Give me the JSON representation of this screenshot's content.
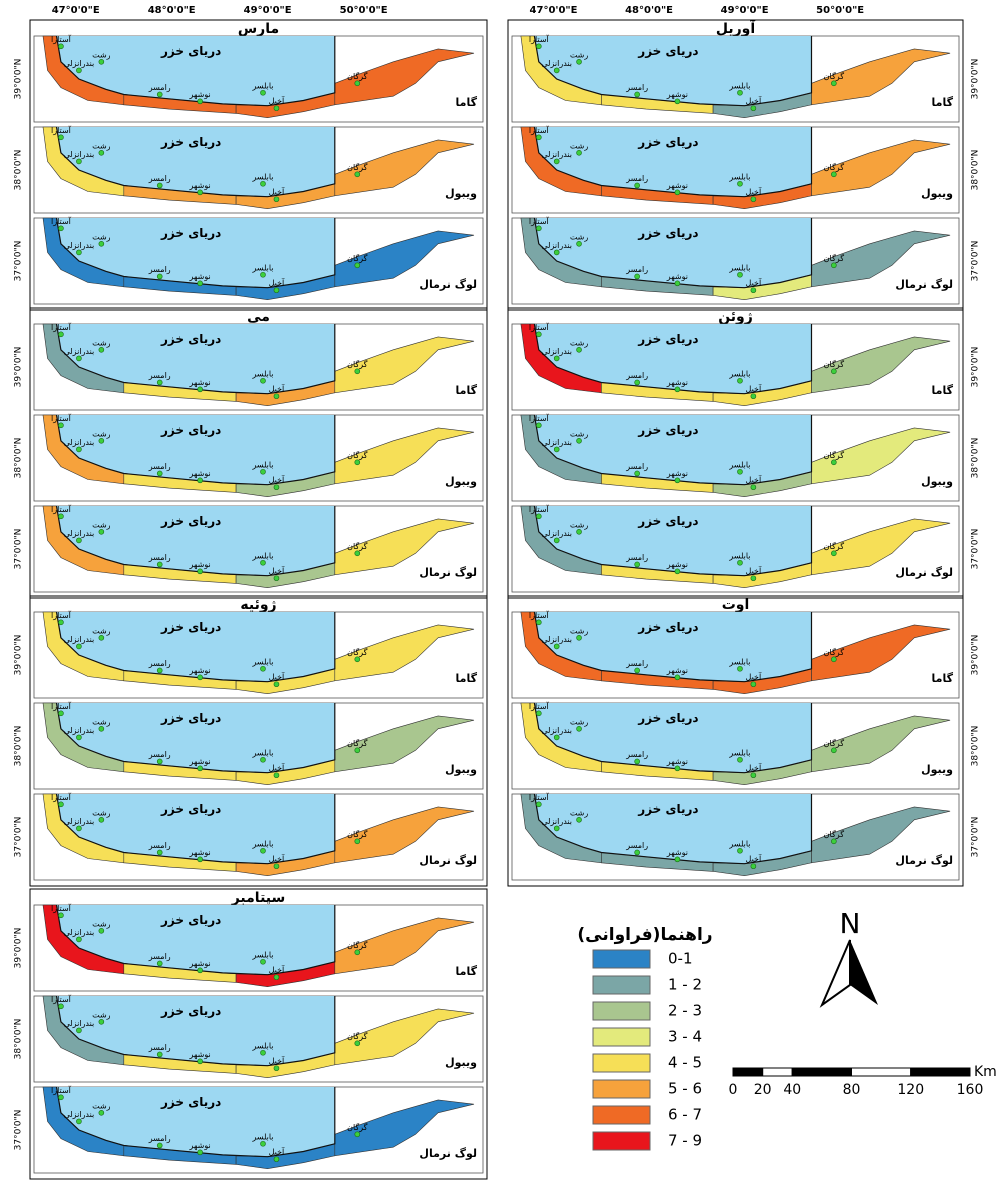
{
  "axis_labels": {
    "lon": [
      "47°0'0\"E",
      "48°0'0\"E",
      "49°0'0\"E",
      "50°0'0\"E"
    ],
    "lat": [
      "39°0'0\"N",
      "38°0'0\"N",
      "37°0'0\"N"
    ]
  },
  "map_labels": {
    "sea": "دریای خزر",
    "cities": [
      "آستارا",
      "بندرانزلی",
      "رشت",
      "رامسر",
      "نوشهر",
      "بابلسر",
      "آخیل",
      "گرگان"
    ]
  },
  "panels": [
    {
      "title": "مارس",
      "maps": [
        {
          "model": "گاما",
          "zones": [
            6,
            6,
            6,
            6
          ]
        },
        {
          "model": "ویبول",
          "zones": [
            4,
            5,
            5,
            5
          ]
        },
        {
          "model": "لوگ نرمال",
          "zones": [
            0,
            0,
            0,
            0
          ]
        }
      ]
    },
    {
      "title": "آوریل",
      "maps": [
        {
          "model": "گاما",
          "zones": [
            4,
            4,
            1,
            5
          ]
        },
        {
          "model": "ویبول",
          "zones": [
            6,
            6,
            6,
            5
          ]
        },
        {
          "model": "لوگ نرمال",
          "zones": [
            1,
            1,
            3,
            1
          ]
        }
      ]
    },
    {
      "title": "می",
      "maps": [
        {
          "model": "گاما",
          "zones": [
            1,
            4,
            5,
            4
          ]
        },
        {
          "model": "ویبول",
          "zones": [
            5,
            4,
            2,
            4
          ]
        },
        {
          "model": "لوگ نرمال",
          "zones": [
            5,
            4,
            2,
            4
          ]
        }
      ]
    },
    {
      "title": "ژوئن",
      "maps": [
        {
          "model": "گاما",
          "zones": [
            7,
            4,
            4,
            2
          ]
        },
        {
          "model": "ویبول",
          "zones": [
            1,
            4,
            2,
            3
          ]
        },
        {
          "model": "لوگ نرمال",
          "zones": [
            1,
            4,
            4,
            4
          ]
        }
      ]
    },
    {
      "title": "ژوئیه",
      "maps": [
        {
          "model": "گاما",
          "zones": [
            4,
            4,
            4,
            4
          ]
        },
        {
          "model": "ویبول",
          "zones": [
            2,
            4,
            4,
            2
          ]
        },
        {
          "model": "لوگ نرمال",
          "zones": [
            4,
            4,
            5,
            5
          ]
        }
      ]
    },
    {
      "title": "اوت",
      "maps": [
        {
          "model": "گاما",
          "zones": [
            6,
            6,
            6,
            6
          ]
        },
        {
          "model": "ویبول",
          "zones": [
            4,
            4,
            2,
            2
          ]
        },
        {
          "model": "لوگ نرمال",
          "zones": [
            1,
            1,
            1,
            1
          ]
        }
      ]
    },
    {
      "title": "سپتامبر",
      "maps": [
        {
          "model": "گاما",
          "zones": [
            7,
            4,
            7,
            5
          ]
        },
        {
          "model": "ویبول",
          "zones": [
            1,
            4,
            4,
            4
          ]
        },
        {
          "model": "لوگ نرمال",
          "zones": [
            0,
            0,
            0,
            0
          ]
        }
      ]
    }
  ],
  "legend": {
    "title": "راهنما(فراوانی)",
    "classes": [
      {
        "label": "0-1",
        "color": "#2b83c6"
      },
      {
        "label": "1 - 2",
        "color": "#7ba6a6"
      },
      {
        "label": "2 - 3",
        "color": "#a9c68f"
      },
      {
        "label": "3 - 4",
        "color": "#e3ea7c"
      },
      {
        "label": "4 - 5",
        "color": "#f6df57"
      },
      {
        "label": "5 - 6",
        "color": "#f6a23c"
      },
      {
        "label": "6 - 7",
        "color": "#ef6a25"
      },
      {
        "label": "7 - 9",
        "color": "#e8151c"
      }
    ]
  },
  "north": "N",
  "scale_bar": {
    "unit": "Km",
    "ticks": [
      0,
      20,
      40,
      80,
      120,
      160
    ]
  }
}
